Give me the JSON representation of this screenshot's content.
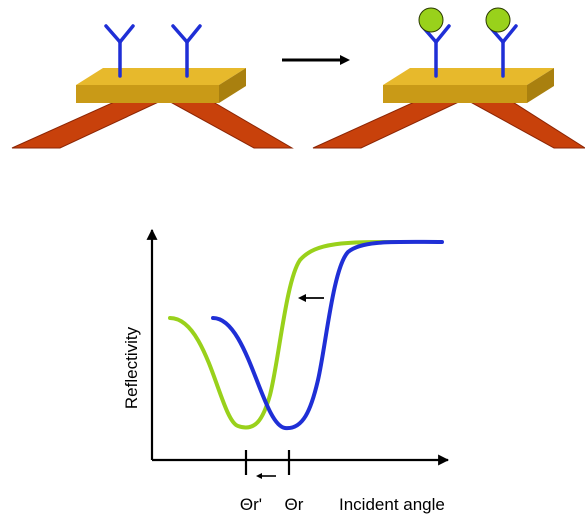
{
  "colors": {
    "chip_top": "#e7b92c",
    "chip_front": "#c99a17",
    "chip_side": "#a9800f",
    "prism": "#c8410b",
    "prism_dark": "#8c2504",
    "antibody": "#1f2fd6",
    "antigen": "#99d11b",
    "curve_before": "#1f2fd6",
    "curve_after": "#99d11b",
    "axis": "#000000"
  },
  "axis_labels": {
    "y": "Reflectivity",
    "x": "Incident angle"
  },
  "angle_labels": {
    "shifted": "Θr'",
    "original": "Θr"
  },
  "icons": {
    "process_arrow": "right-arrow",
    "shift_arrow": "left-arrow"
  }
}
